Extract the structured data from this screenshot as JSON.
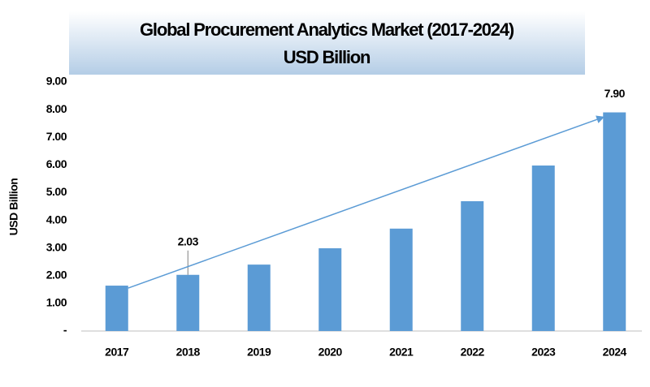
{
  "chart_data": {
    "type": "bar",
    "title": "Global Procurement Analytics Market  (2017-2024)",
    "subtitle": "USD Billion",
    "y_label": "USD Billion",
    "categories": [
      "2017",
      "2018",
      "2019",
      "2020",
      "2021",
      "2022",
      "2023",
      "2024"
    ],
    "values": [
      1.64,
      2.03,
      2.4,
      2.99,
      3.7,
      4.69,
      5.98,
      7.9
    ],
    "value_labels": [
      null,
      "2.03",
      null,
      null,
      null,
      null,
      null,
      "7.90"
    ],
    "color": "#5b9bd5",
    "ylim": [
      0,
      9
    ],
    "yticks": [
      {
        "value": 0,
        "label": "-"
      },
      {
        "value": 1,
        "label": "1.00"
      },
      {
        "value": 2,
        "label": "2.00"
      },
      {
        "value": 3,
        "label": "3.00"
      },
      {
        "value": 4,
        "label": "4.00"
      },
      {
        "value": 5,
        "label": "5.00"
      },
      {
        "value": 6,
        "label": "6.00"
      },
      {
        "value": 7,
        "label": "7.00"
      },
      {
        "value": 8,
        "label": "8.00"
      },
      {
        "value": 9,
        "label": "9.00"
      }
    ],
    "grid": false
  }
}
